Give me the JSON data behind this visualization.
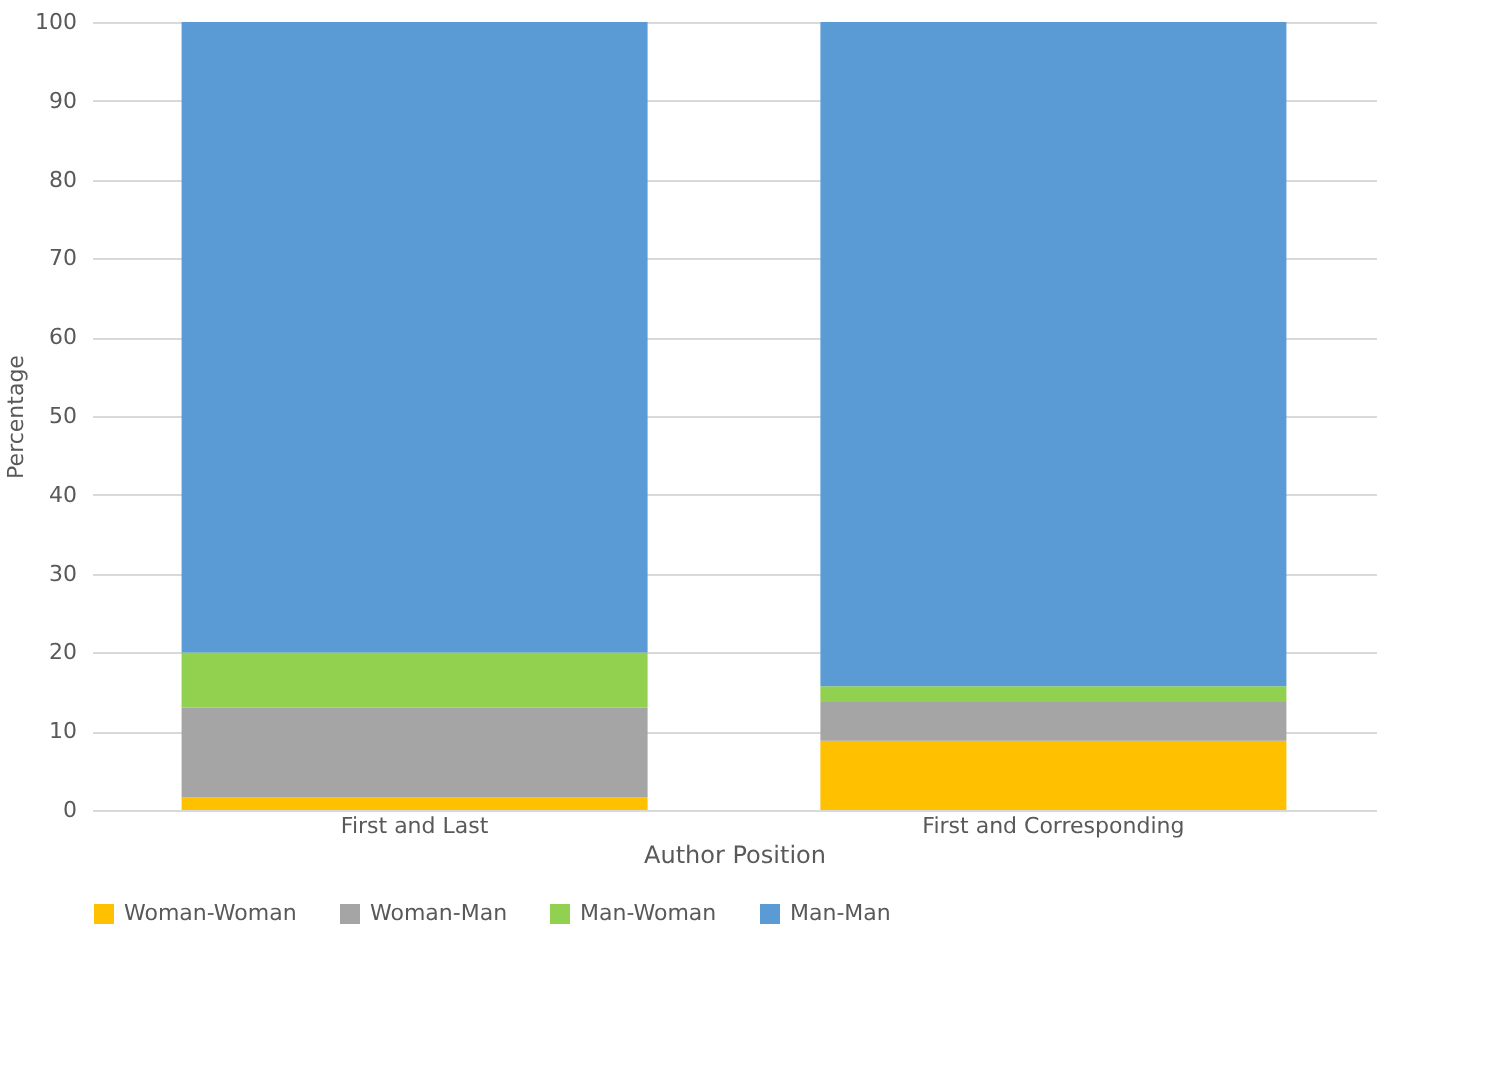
{
  "chart_data": {
    "type": "bar",
    "stacked": true,
    "xlabel": "Author Position",
    "ylabel": "Percentage",
    "categories": [
      "First and Last",
      "First and Corresponding"
    ],
    "series": [
      {
        "name": "Woman-Woman",
        "color": "#ffc000",
        "values": [
          1.6,
          8.8
        ]
      },
      {
        "name": "Woman-Man",
        "color": "#a5a5a5",
        "values": [
          11.4,
          4.9
        ]
      },
      {
        "name": "Man-Woman",
        "color": "#92d050",
        "values": [
          7.0,
          2.0
        ]
      },
      {
        "name": "Man-Man",
        "color": "#5b9bd5",
        "values": [
          80.0,
          84.3
        ]
      }
    ],
    "ylim": [
      0,
      100
    ],
    "yticks": [
      0,
      10,
      20,
      30,
      40,
      50,
      60,
      70,
      80,
      90,
      100
    ],
    "grid": "y",
    "legend": "bottom"
  }
}
